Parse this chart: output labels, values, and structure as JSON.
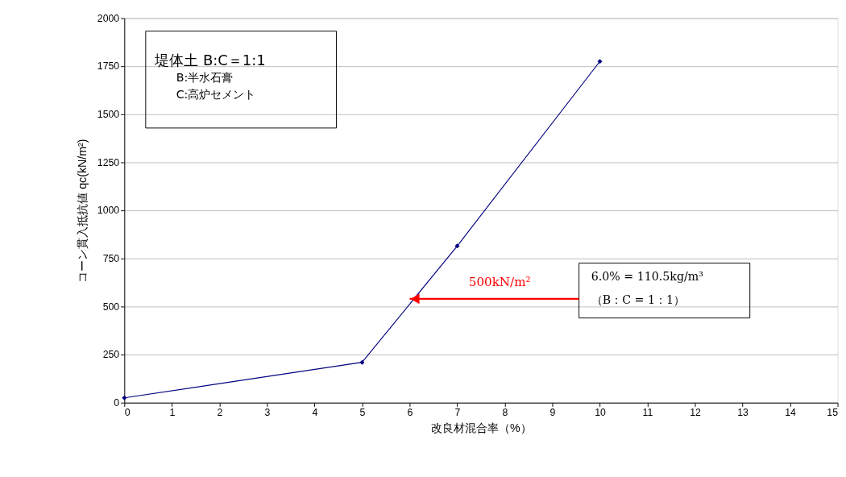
{
  "chart_data": {
    "type": "line",
    "xlabel": "改良材混合率（%）",
    "ylabel": "コーン貫入抵抗値 qc(kN/m²)",
    "x": [
      0,
      5,
      7,
      10
    ],
    "series": [
      {
        "color": "#000080",
        "values": [
          25,
          210,
          815,
          1775
        ]
      }
    ],
    "xlim": [
      0,
      15
    ],
    "xticks": [
      0,
      1,
      2,
      3,
      4,
      5,
      6,
      7,
      8,
      9,
      10,
      11,
      12,
      13,
      14,
      15
    ],
    "ylim": [
      0,
      2000
    ],
    "yticks": [
      0,
      250,
      500,
      750,
      1000,
      1250,
      1500,
      1750,
      2000
    ],
    "grid": "y",
    "marker": "diamond",
    "line_style": "solid",
    "annotations": [
      "堤体土 B:C＝1:1",
      "B:半水石膏",
      "C:高炉セメント",
      "500kN/m²",
      "6.0% = 110.5kg/m³",
      {
        "text": "（B：C = 1：1）",
        "x": 6,
        "y": 540
      }
    ],
    "legend": false
  }
}
